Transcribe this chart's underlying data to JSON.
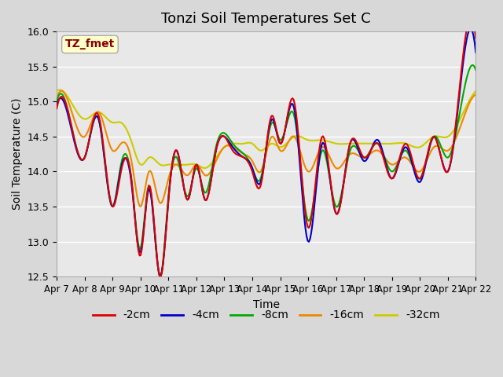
{
  "title": "Tonzi Soil Temperatures Set C",
  "xlabel": "Time",
  "ylabel": "Soil Temperature (C)",
  "ylim": [
    12.5,
    16.0
  ],
  "series_colors": {
    "-2cm": "#dd0000",
    "-4cm": "#0000cc",
    "-8cm": "#00aa00",
    "-16cm": "#ee8800",
    "-32cm": "#cccc00"
  },
  "series_labels": [
    "-2cm",
    "-4cm",
    "-8cm",
    "-16cm",
    "-32cm"
  ],
  "xtick_labels": [
    "Apr 7",
    "Apr 8",
    "Apr 9",
    "Apr 10",
    "Apr 11",
    "Apr 12",
    "Apr 13",
    "Apr 14",
    "Apr 15",
    "Apr 16",
    "Apr 17",
    "Apr 18",
    "Apr 19",
    "Apr 20",
    "Apr 21",
    "Apr 22"
  ],
  "annotation_text": "TZ_fmet",
  "annotation_color": "#880000",
  "annotation_bg": "#ffffcc",
  "background_color": "#e8e8e8",
  "plot_bg": "#e8e8e8",
  "grid_color": "white",
  "linewidth": 1.5
}
